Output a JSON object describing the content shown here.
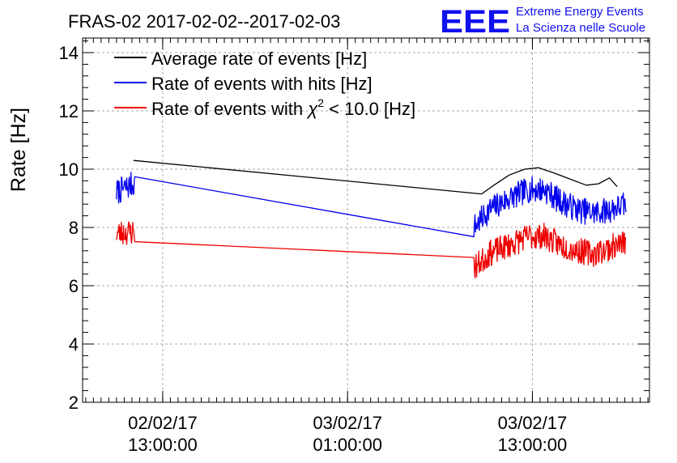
{
  "chart_data": {
    "type": "line",
    "title": "FRAS-02 2017-02-02--2017-02-03",
    "xlabel": "",
    "ylabel": "Rate [Hz]",
    "ylim": [
      2,
      14.5
    ],
    "yticks": [
      2,
      4,
      6,
      8,
      10,
      12,
      14
    ],
    "x_unit": "hours since 2017-02-02 00:00",
    "xlim": [
      7.8,
      44.6
    ],
    "xticks": [
      {
        "x": 13,
        "date": "02/02/17",
        "time": "13:00:00"
      },
      {
        "x": 25,
        "date": "03/02/17",
        "time": "01:00:00"
      },
      {
        "x": 37,
        "date": "03/02/17",
        "time": "13:00:00"
      }
    ],
    "grid": true,
    "legend_position": "top-left",
    "series": [
      {
        "name": "Average rate of events [Hz]",
        "color": "#000000",
        "noise": 0,
        "points": [
          [
            11.1,
            10.3
          ],
          [
            33.7,
            9.15
          ],
          [
            34.5,
            9.45
          ],
          [
            35.5,
            9.8
          ],
          [
            36.5,
            10.0
          ],
          [
            37.4,
            10.05
          ],
          [
            38.5,
            9.85
          ],
          [
            39.5,
            9.65
          ],
          [
            40.5,
            9.45
          ],
          [
            41.3,
            9.5
          ],
          [
            42.0,
            9.7
          ],
          [
            42.5,
            9.4
          ]
        ]
      },
      {
        "name": "Rate of events with hits [Hz]",
        "color": "#0000ee",
        "noise": 0.45,
        "seed": 7,
        "points": [
          [
            10.0,
            9.2
          ],
          [
            11.1,
            9.5
          ],
          [
            33.3,
            8.05
          ],
          [
            34.2,
            8.6
          ],
          [
            35.5,
            9.0
          ],
          [
            36.8,
            9.3
          ],
          [
            37.8,
            9.3
          ],
          [
            38.8,
            8.9
          ],
          [
            40.0,
            8.6
          ],
          [
            41.0,
            8.5
          ],
          [
            42.0,
            8.6
          ],
          [
            43.1,
            8.8
          ]
        ]
      },
      {
        "name": "Rate of events with χ² < 10.0 [Hz]",
        "label_parts": {
          "pre": "Rate of events with ",
          "chi": "χ",
          "sup": "2",
          "post": " < 10.0 [Hz]"
        },
        "color": "#ee0000",
        "noise": 0.45,
        "seed": 23,
        "points": [
          [
            10.0,
            7.8
          ],
          [
            11.1,
            7.85
          ],
          [
            33.3,
            6.65
          ],
          [
            34.2,
            7.1
          ],
          [
            35.5,
            7.4
          ],
          [
            36.8,
            7.7
          ],
          [
            37.8,
            7.7
          ],
          [
            38.8,
            7.4
          ],
          [
            40.0,
            7.2
          ],
          [
            41.0,
            7.1
          ],
          [
            42.0,
            7.3
          ],
          [
            43.1,
            7.5
          ]
        ]
      }
    ],
    "gaps": [
      [
        11.2,
        33.2
      ]
    ]
  },
  "logo": {
    "mark": "EEE",
    "line1": "Extreme Energy Events",
    "line2": "La Scienza nelle Scuole"
  }
}
